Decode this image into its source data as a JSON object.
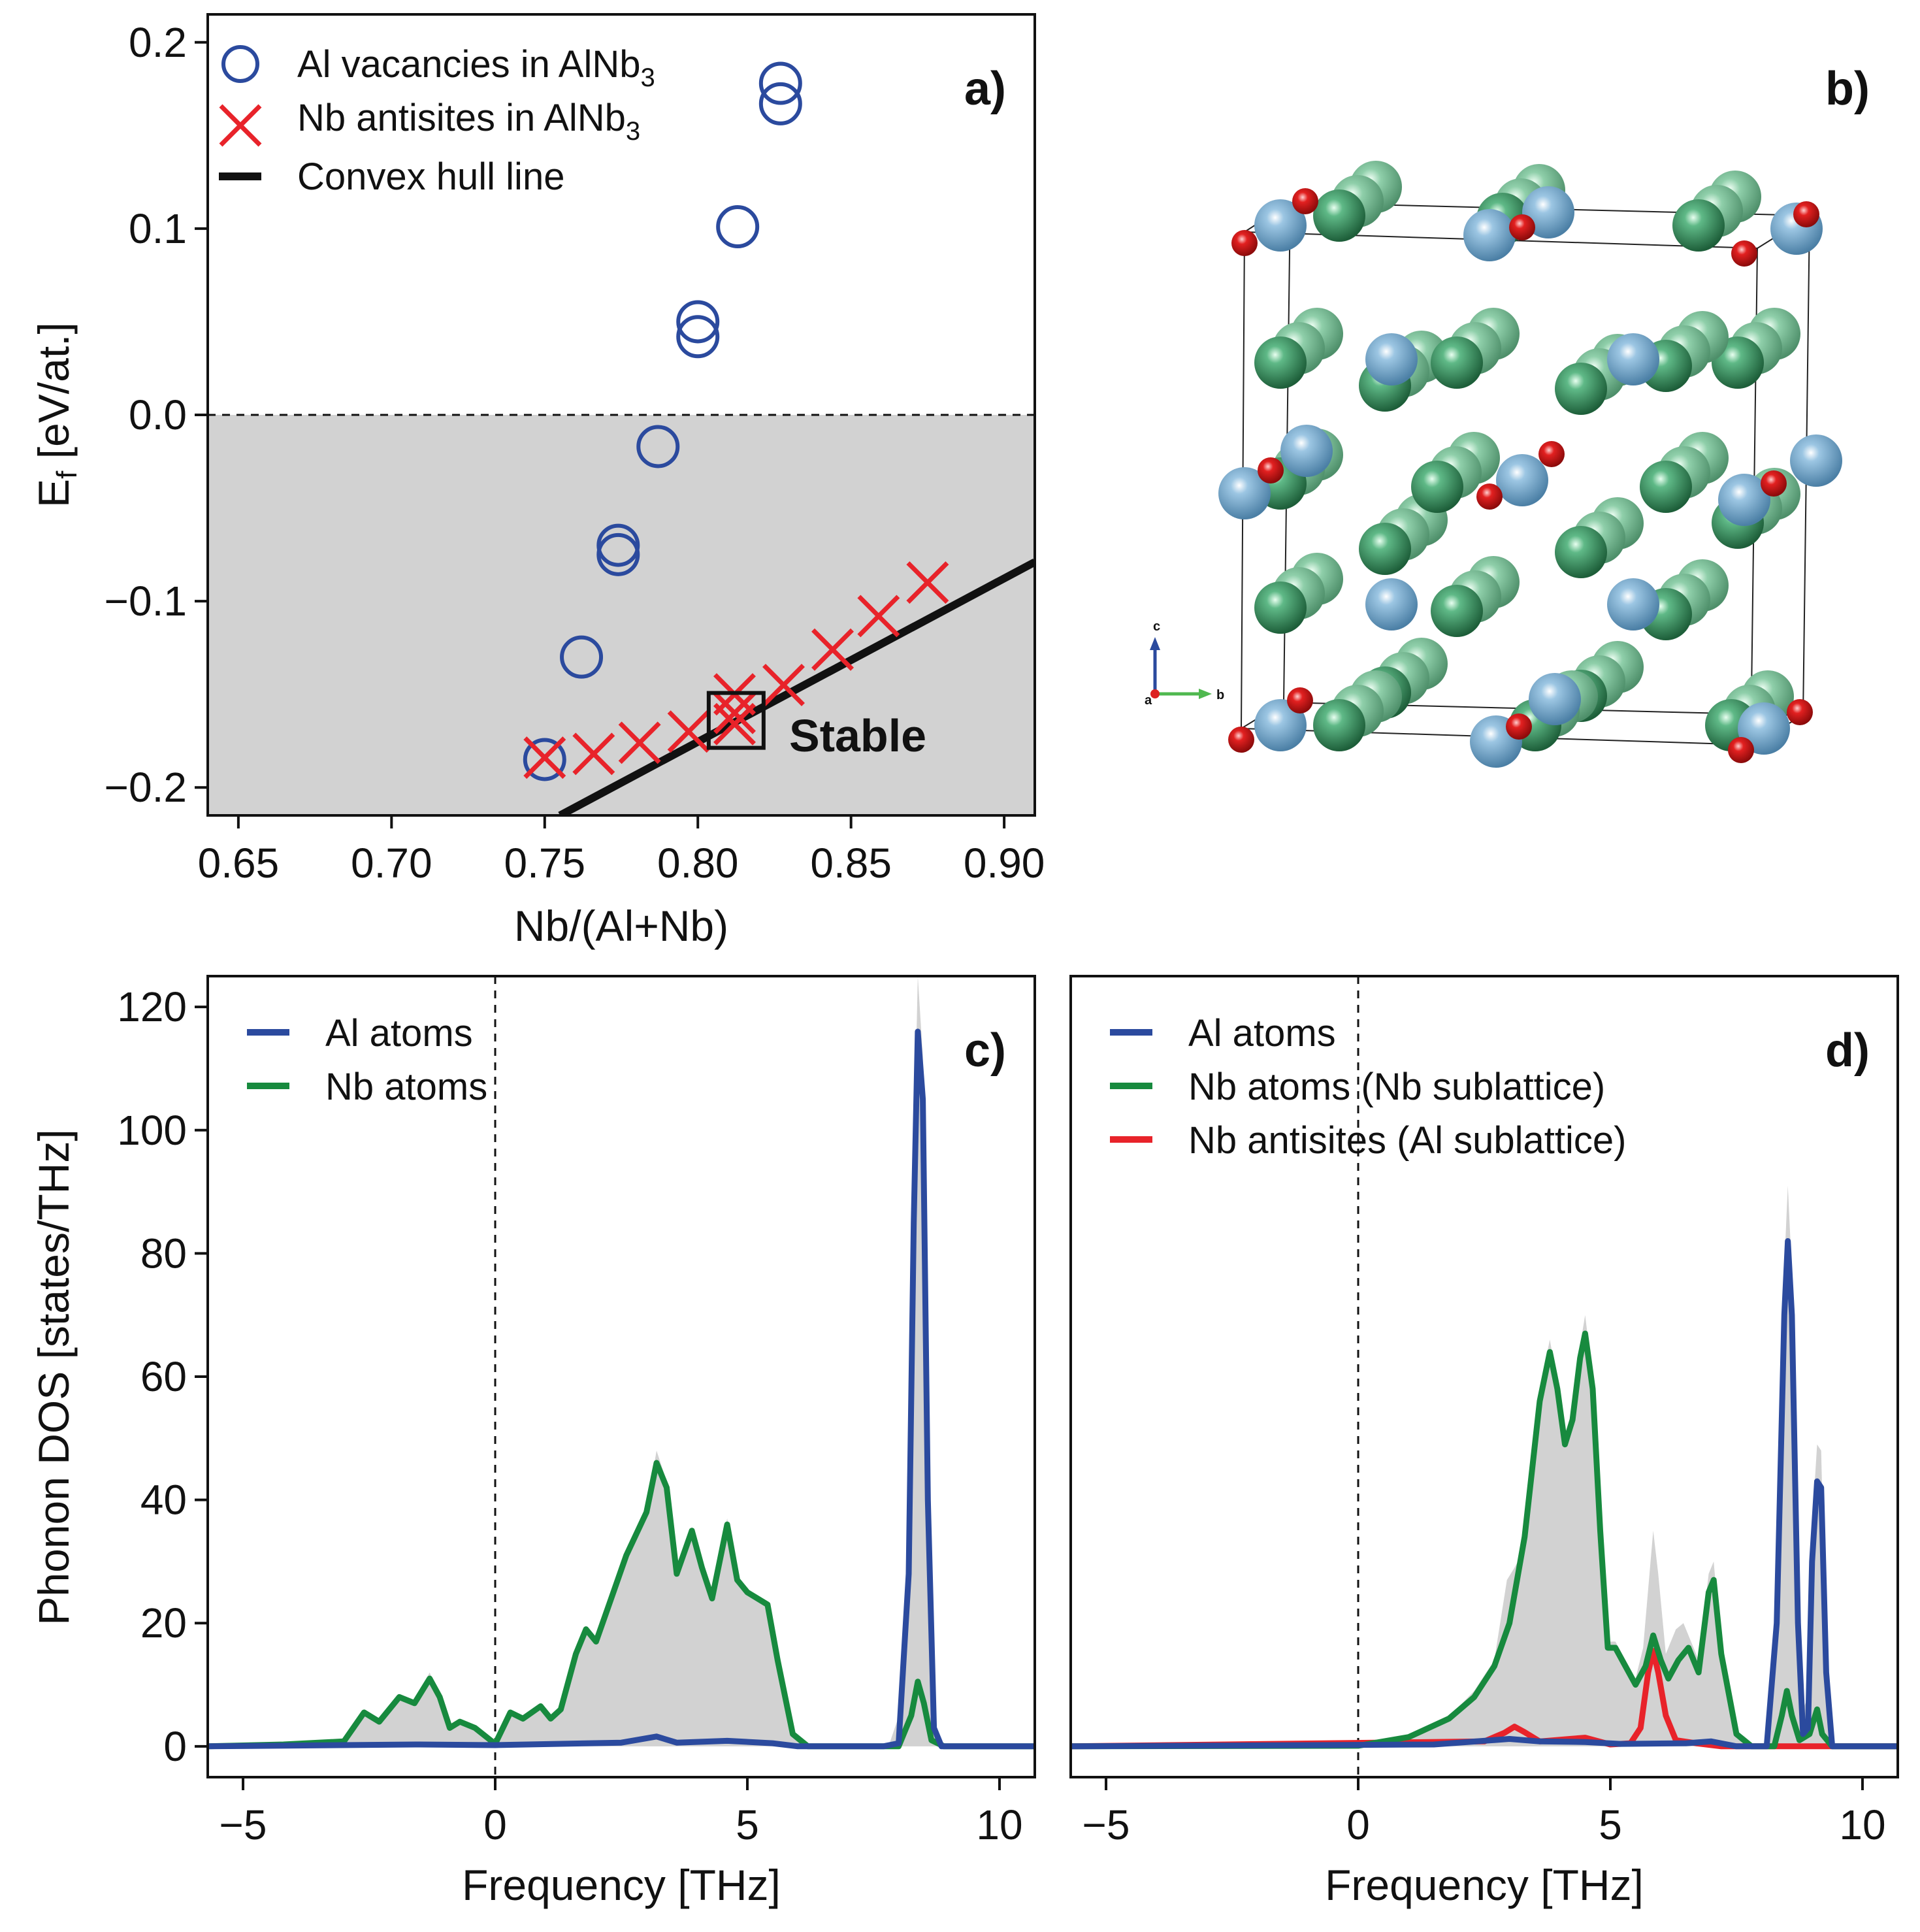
{
  "colors": {
    "blue": "#2b4a9e",
    "green": "#178a3e",
    "red": "#e8232a",
    "black": "#111111",
    "shade": "#d2d2d2",
    "al_atom": "#7fb2d6",
    "nb_atom": "#2f8a58",
    "antisite": "#e01b1b"
  },
  "chart_data": [
    {
      "panel": "a)",
      "type": "scatter",
      "xlabel": "Nb/(Al+Nb)",
      "ylabel": "E",
      "ylabel_sub": "f",
      "ylabel_unit": " [eV/at.]",
      "xlim": [
        0.64,
        0.91
      ],
      "ylim": [
        -0.215,
        0.215
      ],
      "xticks": [
        0.65,
        0.7,
        0.75,
        0.8,
        0.85,
        0.9
      ],
      "xtick_labels": [
        "0.65",
        "0.70",
        "0.75",
        "0.80",
        "0.85",
        "0.90"
      ],
      "yticks": [
        -0.2,
        -0.1,
        0.0,
        0.1,
        0.2
      ],
      "ytick_labels": [
        "−0.2",
        "−0.1",
        "0.0",
        "0.1",
        "0.2"
      ],
      "legend": {
        "vac_text": "Al vacancies in AlNb",
        "vac_sub": "3",
        "anti_text": "Nb antisites in AlNb",
        "anti_sub": "3",
        "hull_text": "Convex hull line"
      },
      "zero_line": 0.0,
      "vacancies": [
        {
          "x": 0.75,
          "y": -0.185
        },
        {
          "x": 0.762,
          "y": -0.13
        },
        {
          "x": 0.774,
          "y": -0.07
        },
        {
          "x": 0.774,
          "y": -0.075
        },
        {
          "x": 0.787,
          "y": -0.017
        },
        {
          "x": 0.8,
          "y": 0.05
        },
        {
          "x": 0.8,
          "y": 0.042
        },
        {
          "x": 0.813,
          "y": 0.101
        },
        {
          "x": 0.827,
          "y": 0.178
        },
        {
          "x": 0.827,
          "y": 0.167
        }
      ],
      "antisites": [
        {
          "x": 0.75,
          "y": -0.184
        },
        {
          "x": 0.766,
          "y": -0.182
        },
        {
          "x": 0.781,
          "y": -0.176
        },
        {
          "x": 0.797,
          "y": -0.17
        },
        {
          "x": 0.812,
          "y": -0.15
        },
        {
          "x": 0.812,
          "y": -0.16
        },
        {
          "x": 0.812,
          "y": -0.166
        },
        {
          "x": 0.828,
          "y": -0.145
        },
        {
          "x": 0.844,
          "y": -0.126
        },
        {
          "x": 0.859,
          "y": -0.108
        },
        {
          "x": 0.875,
          "y": -0.09
        }
      ],
      "hull_line": [
        {
          "x": 0.755,
          "y": -0.215
        },
        {
          "x": 0.91,
          "y": -0.079
        }
      ],
      "stable_point": {
        "x": 0.8125,
        "y": -0.164
      },
      "stable_label": "Stable"
    },
    {
      "panel": "c)",
      "type": "line",
      "xlabel": "Frequency [THz]",
      "ylabel": "Phonon DOS [states/THz]",
      "xlim": [
        -5.7,
        10.7
      ],
      "ylim": [
        -5,
        125
      ],
      "xticks": [
        -5,
        0,
        5,
        10
      ],
      "xtick_labels": [
        "−5",
        "0",
        "5",
        "10"
      ],
      "yticks": [
        0,
        20,
        40,
        60,
        80,
        100,
        120
      ],
      "ytick_labels": [
        "0",
        "20",
        "40",
        "60",
        "80",
        "100",
        "120"
      ],
      "series": [
        {
          "name": "Al atoms",
          "color": "#2b4a9e",
          "points": [
            [
              -5.7,
              0
            ],
            [
              -1.5,
              0.3
            ],
            [
              0,
              0.2
            ],
            [
              2.5,
              0.6
            ],
            [
              3.2,
              1.6
            ],
            [
              3.6,
              0.6
            ],
            [
              4.6,
              0.9
            ],
            [
              5.5,
              0.5
            ],
            [
              6,
              0
            ],
            [
              7.7,
              0
            ],
            [
              8,
              0.5
            ],
            [
              8.2,
              28
            ],
            [
              8.3,
              85
            ],
            [
              8.38,
              116
            ],
            [
              8.48,
              105
            ],
            [
              8.58,
              40
            ],
            [
              8.7,
              3
            ],
            [
              8.85,
              0
            ],
            [
              10.7,
              0
            ]
          ]
        },
        {
          "name": "Nb atoms",
          "color": "#178a3e",
          "points": [
            [
              -5.7,
              0
            ],
            [
              -4.2,
              0.3
            ],
            [
              -3,
              0.8
            ],
            [
              -2.6,
              5.5
            ],
            [
              -2.3,
              4
            ],
            [
              -1.9,
              8
            ],
            [
              -1.6,
              7
            ],
            [
              -1.3,
              11
            ],
            [
              -1.1,
              8
            ],
            [
              -0.9,
              3
            ],
            [
              -0.7,
              4
            ],
            [
              -0.4,
              3
            ],
            [
              0,
              0.4
            ],
            [
              0.3,
              5.5
            ],
            [
              0.55,
              4.5
            ],
            [
              0.9,
              6.5
            ],
            [
              1.1,
              4.5
            ],
            [
              1.3,
              6
            ],
            [
              1.6,
              15
            ],
            [
              1.8,
              19
            ],
            [
              2,
              17
            ],
            [
              2.3,
              24
            ],
            [
              2.6,
              31
            ],
            [
              3,
              38
            ],
            [
              3.2,
              46
            ],
            [
              3.4,
              42
            ],
            [
              3.6,
              28
            ],
            [
              3.9,
              35
            ],
            [
              4.1,
              29
            ],
            [
              4.3,
              24
            ],
            [
              4.6,
              36
            ],
            [
              4.8,
              27
            ],
            [
              5.0,
              25
            ],
            [
              5.4,
              23
            ],
            [
              5.6,
              14
            ],
            [
              5.9,
              2
            ],
            [
              6.2,
              0
            ],
            [
              8.0,
              0
            ],
            [
              8.25,
              5
            ],
            [
              8.38,
              10.5
            ],
            [
              8.5,
              7
            ],
            [
              8.65,
              1
            ],
            [
              8.9,
              0
            ],
            [
              10.7,
              0
            ]
          ]
        }
      ],
      "total_dos": [
        [
          -5.7,
          0
        ],
        [
          -4.2,
          0.3
        ],
        [
          -3,
          0.8
        ],
        [
          -2.6,
          5.5
        ],
        [
          -2.3,
          4
        ],
        [
          -1.9,
          8.5
        ],
        [
          -1.6,
          7.5
        ],
        [
          -1.3,
          12
        ],
        [
          -1.1,
          8
        ],
        [
          -0.9,
          3.5
        ],
        [
          -0.7,
          4
        ],
        [
          -0.4,
          3
        ],
        [
          0,
          0.4
        ],
        [
          0.3,
          5.5
        ],
        [
          0.55,
          4.5
        ],
        [
          0.9,
          6.5
        ],
        [
          1.1,
          4.5
        ],
        [
          1.3,
          6
        ],
        [
          1.6,
          15.5
        ],
        [
          1.8,
          19.5
        ],
        [
          2,
          17.5
        ],
        [
          2.3,
          24.5
        ],
        [
          2.6,
          31.5
        ],
        [
          3,
          38.5
        ],
        [
          3.2,
          48
        ],
        [
          3.4,
          43
        ],
        [
          3.6,
          28.5
        ],
        [
          3.9,
          35.5
        ],
        [
          4.1,
          29.5
        ],
        [
          4.3,
          24.5
        ],
        [
          4.6,
          37
        ],
        [
          4.8,
          27.5
        ],
        [
          5.0,
          25.5
        ],
        [
          5.4,
          23.5
        ],
        [
          5.6,
          14.5
        ],
        [
          5.9,
          2
        ],
        [
          6.2,
          0
        ],
        [
          7.8,
          0
        ],
        [
          8.05,
          6
        ],
        [
          8.2,
          34
        ],
        [
          8.3,
          95
        ],
        [
          8.38,
          125
        ],
        [
          8.48,
          112
        ],
        [
          8.58,
          45
        ],
        [
          8.7,
          4
        ],
        [
          8.85,
          0
        ],
        [
          10.7,
          0
        ]
      ]
    },
    {
      "panel": "d)",
      "type": "line",
      "xlabel": "Frequency [THz]",
      "ylabel": "",
      "xlim": [
        -5.7,
        10.7
      ],
      "ylim": [
        -5,
        125
      ],
      "xticks": [
        -5,
        0,
        5,
        10
      ],
      "xtick_labels": [
        "−5",
        "0",
        "5",
        "10"
      ],
      "series": [
        {
          "name": "Al atoms",
          "color": "#2b4a9e",
          "points": [
            [
              -5.7,
              0
            ],
            [
              1.5,
              0.3
            ],
            [
              3,
              1.2
            ],
            [
              3.6,
              0.8
            ],
            [
              4.5,
              0.7
            ],
            [
              5.2,
              0.4
            ],
            [
              6.5,
              0.5
            ],
            [
              7,
              0.8
            ],
            [
              7.5,
              0
            ],
            [
              8.1,
              0
            ],
            [
              8.3,
              20
            ],
            [
              8.45,
              70
            ],
            [
              8.52,
              82
            ],
            [
              8.6,
              70
            ],
            [
              8.72,
              20
            ],
            [
              8.82,
              2
            ],
            [
              8.92,
              3
            ],
            [
              9.0,
              30
            ],
            [
              9.1,
              43
            ],
            [
              9.18,
              42
            ],
            [
              9.28,
              12
            ],
            [
              9.4,
              0
            ],
            [
              10.7,
              0
            ]
          ]
        },
        {
          "name": "Nb atoms (Nb sublattice)",
          "color": "#178a3e",
          "points": [
            [
              -5.7,
              0
            ],
            [
              0,
              0.1
            ],
            [
              1,
              1.5
            ],
            [
              1.8,
              4.5
            ],
            [
              2.3,
              8
            ],
            [
              2.7,
              13
            ],
            [
              3.0,
              20
            ],
            [
              3.3,
              34
            ],
            [
              3.6,
              56
            ],
            [
              3.8,
              64
            ],
            [
              3.95,
              58
            ],
            [
              4.1,
              49
            ],
            [
              4.25,
              53
            ],
            [
              4.4,
              63
            ],
            [
              4.5,
              67
            ],
            [
              4.65,
              58
            ],
            [
              4.8,
              35
            ],
            [
              4.95,
              16
            ],
            [
              5.1,
              16
            ],
            [
              5.3,
              13
            ],
            [
              5.5,
              10
            ],
            [
              5.7,
              13
            ],
            [
              5.85,
              18
            ],
            [
              6.0,
              14
            ],
            [
              6.15,
              11
            ],
            [
              6.35,
              14
            ],
            [
              6.55,
              16
            ],
            [
              6.75,
              12
            ],
            [
              6.95,
              25
            ],
            [
              7.05,
              27
            ],
            [
              7.2,
              15
            ],
            [
              7.5,
              2
            ],
            [
              7.8,
              0
            ],
            [
              8.25,
              0
            ],
            [
              8.4,
              5
            ],
            [
              8.5,
              9
            ],
            [
              8.6,
              5
            ],
            [
              8.75,
              1
            ],
            [
              8.95,
              2
            ],
            [
              9.1,
              6
            ],
            [
              9.2,
              2
            ],
            [
              9.4,
              0
            ],
            [
              10.7,
              0
            ]
          ]
        },
        {
          "name": "Nb antisites (Al sublattice)",
          "color": "#e8232a",
          "points": [
            [
              -5.7,
              0
            ],
            [
              2.5,
              0.8
            ],
            [
              2.9,
              2.2
            ],
            [
              3.1,
              3.2
            ],
            [
              3.3,
              2.3
            ],
            [
              3.6,
              0.8
            ],
            [
              4.2,
              1.2
            ],
            [
              4.5,
              1.4
            ],
            [
              5.0,
              0.3
            ],
            [
              5.4,
              0.5
            ],
            [
              5.6,
              3
            ],
            [
              5.75,
              12
            ],
            [
              5.85,
              15.5
            ],
            [
              5.95,
              12
            ],
            [
              6.1,
              5
            ],
            [
              6.3,
              1
            ],
            [
              6.7,
              0.5
            ],
            [
              7.2,
              0
            ],
            [
              10.7,
              0
            ]
          ]
        }
      ],
      "total_dos": [
        [
          -5.7,
          0
        ],
        [
          0,
          0.1
        ],
        [
          1,
          1.5
        ],
        [
          1.8,
          4.8
        ],
        [
          2.3,
          9
        ],
        [
          2.7,
          14
        ],
        [
          2.95,
          27
        ],
        [
          3.1,
          29
        ],
        [
          3.3,
          32
        ],
        [
          3.6,
          58
        ],
        [
          3.8,
          66
        ],
        [
          3.95,
          59
        ],
        [
          4.1,
          50
        ],
        [
          4.25,
          54
        ],
        [
          4.4,
          65
        ],
        [
          4.5,
          70
        ],
        [
          4.65,
          60
        ],
        [
          4.8,
          36
        ],
        [
          4.95,
          17
        ],
        [
          5.1,
          17
        ],
        [
          5.3,
          14
        ],
        [
          5.5,
          11
        ],
        [
          5.65,
          16
        ],
        [
          5.85,
          35
        ],
        [
          5.95,
          28
        ],
        [
          6.1,
          15
        ],
        [
          6.3,
          19
        ],
        [
          6.45,
          20
        ],
        [
          6.6,
          17
        ],
        [
          6.75,
          14
        ],
        [
          6.95,
          28
        ],
        [
          7.05,
          30
        ],
        [
          7.2,
          16
        ],
        [
          7.5,
          2
        ],
        [
          7.8,
          0
        ],
        [
          8.15,
          0
        ],
        [
          8.3,
          22
        ],
        [
          8.45,
          78
        ],
        [
          8.52,
          91
        ],
        [
          8.6,
          77
        ],
        [
          8.72,
          23
        ],
        [
          8.82,
          6
        ],
        [
          8.92,
          8
        ],
        [
          9.0,
          36
        ],
        [
          9.1,
          49
        ],
        [
          9.18,
          48
        ],
        [
          9.28,
          14
        ],
        [
          9.4,
          0
        ],
        [
          10.7,
          0
        ]
      ]
    }
  ],
  "panel_b": {
    "label": "b)",
    "axis_labels": {
      "c": "c",
      "a": "a",
      "b": "b"
    }
  }
}
